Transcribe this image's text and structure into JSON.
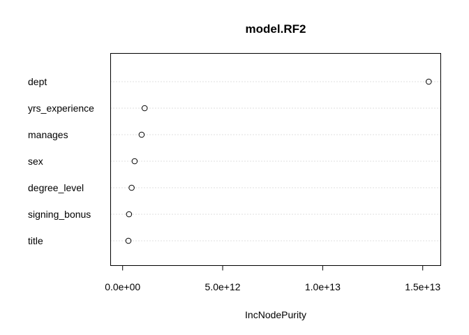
{
  "chart_data": {
    "type": "scatter",
    "subtype": "dotchart",
    "title": "model.RF2",
    "xlabel": "IncNodePurity",
    "ylabel": "",
    "categories": [
      "dept",
      "yrs_experience",
      "manages",
      "sex",
      "degree_level",
      "signing_bonus",
      "title"
    ],
    "values": [
      15300000000000.0,
      1100000000000.0,
      950000000000.0,
      600000000000.0,
      450000000000.0,
      320000000000.0,
      290000000000.0
    ],
    "xlim": [
      -600000000000.0,
      15900000000000.0
    ],
    "xticks": [
      0,
      5000000000000.0,
      10000000000000.0,
      15000000000000.0
    ],
    "xtick_labels": [
      "0.0e+00",
      "5.0e+12",
      "1.0e+13",
      "1.5e+13"
    ],
    "grid": "dotted horizontal guide lines per category",
    "colors": {
      "points": "#000000",
      "guides": "#bebebe",
      "frame": "#000000"
    }
  }
}
